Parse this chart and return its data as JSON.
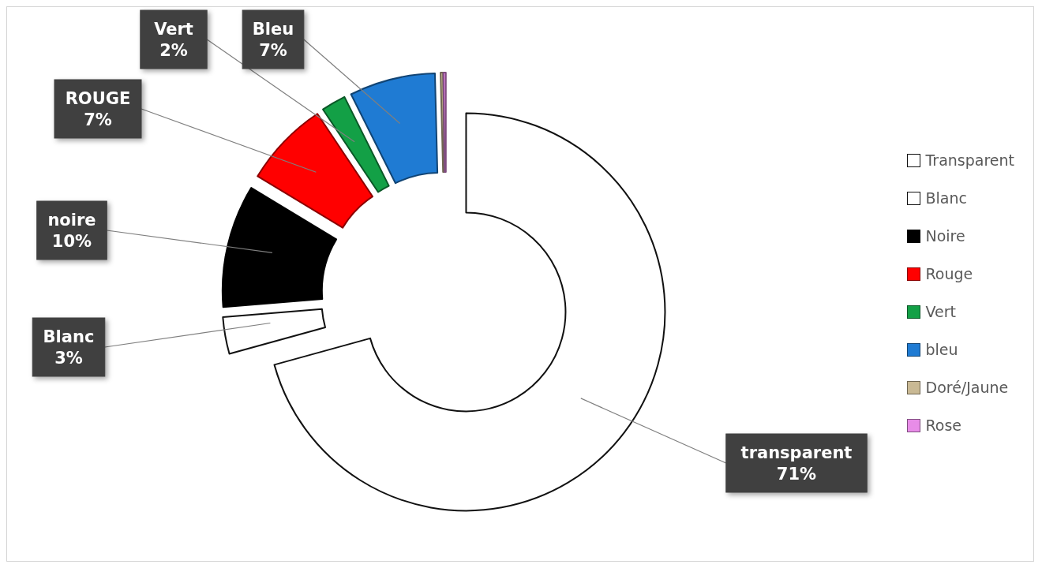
{
  "chart_data": {
    "type": "donut",
    "categories": [
      "Transparent",
      "Blanc",
      "Noire",
      "Rouge",
      "Vert",
      "bleu",
      "Doré/Jaune",
      "Rose"
    ],
    "values": [
      71,
      3,
      10,
      7,
      2,
      7,
      0.2,
      0.2
    ],
    "colors": [
      "#ffffff",
      "#ffffff",
      "#000000",
      "#ff0000",
      "#13a046",
      "#1f7bd3",
      "#c9b994",
      "#e88ce8"
    ],
    "value_labels": [
      "transparent\n71%",
      "Blanc\n3%",
      "noire\n10%",
      "ROUGE\n7%",
      "Vert\n2%",
      "Bleu\n7%",
      null,
      null
    ],
    "legend": "right"
  }
}
